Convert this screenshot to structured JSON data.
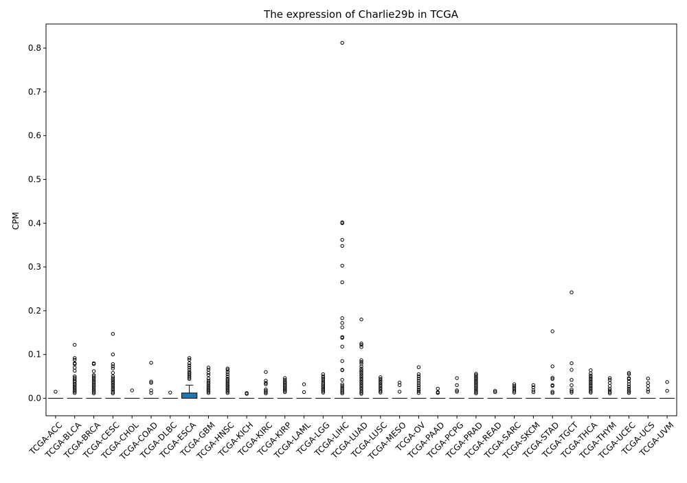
{
  "chart_data": {
    "type": "box",
    "title": "The expression of Charlie29b in TCGA",
    "xlabel": "",
    "ylabel": "CPM",
    "ylim": [
      -0.04,
      0.855
    ],
    "yticks": [
      0.0,
      0.1,
      0.2,
      0.3,
      0.4,
      0.5,
      0.6,
      0.7,
      0.8
    ],
    "ytick_labels": [
      "0.0",
      "0.1",
      "0.2",
      "0.3",
      "0.4",
      "0.5",
      "0.6",
      "0.7",
      "0.8"
    ],
    "grid": false,
    "box_color": "#1f77b4",
    "categories": [
      "TCGA-ACC",
      "TCGA-BLCA",
      "TCGA-BRCA",
      "TCGA-CESC",
      "TCGA-CHOL",
      "TCGA-COAD",
      "TCGA-DLBC",
      "TCGA-ESCA",
      "TCGA-GBM",
      "TCGA-HNSC",
      "TCGA-KICH",
      "TCGA-KIRC",
      "TCGA-KIRP",
      "TCGA-LAML",
      "TCGA-LGG",
      "TCGA-LIHC",
      "TCGA-LUAD",
      "TCGA-LUSC",
      "TCGA-MESO",
      "TCGA-OV",
      "TCGA-PAAD",
      "TCGA-PCPG",
      "TCGA-PRAD",
      "TCGA-READ",
      "TCGA-SARC",
      "TCGA-SKCM",
      "TCGA-STAD",
      "TCGA-TGCT",
      "TCGA-THCA",
      "TCGA-THYM",
      "TCGA-UCEC",
      "TCGA-UCS",
      "TCGA-UVM"
    ],
    "boxes": [
      {
        "q1": 0,
        "median": 0,
        "q3": 0,
        "whislo": 0,
        "whishi": 0,
        "fliers": [
          0.015
        ]
      },
      {
        "q1": 0,
        "median": 0,
        "q3": 0,
        "whislo": 0,
        "whishi": 0,
        "fliers": [
          0.122,
          0.092,
          0.088,
          0.08,
          0.078,
          0.07,
          0.063,
          0.05,
          0.047,
          0.044,
          0.04,
          0.037,
          0.033,
          0.03,
          0.027,
          0.024,
          0.021,
          0.018,
          0.015,
          0.012
        ]
      },
      {
        "q1": 0,
        "median": 0,
        "q3": 0,
        "whislo": 0,
        "whishi": 0,
        "fliers": [
          0.08,
          0.078,
          0.062,
          0.053,
          0.05,
          0.047,
          0.044,
          0.041,
          0.038,
          0.035,
          0.032,
          0.029,
          0.026,
          0.023,
          0.02,
          0.017,
          0.014,
          0.011
        ]
      },
      {
        "q1": 0,
        "median": 0,
        "q3": 0,
        "whislo": 0,
        "whishi": 0,
        "fliers": [
          0.147,
          0.1,
          0.078,
          0.073,
          0.068,
          0.058,
          0.05,
          0.046,
          0.042,
          0.038,
          0.034,
          0.03,
          0.026,
          0.022,
          0.018,
          0.014,
          0.011
        ]
      },
      {
        "q1": 0,
        "median": 0,
        "q3": 0,
        "whislo": 0,
        "whishi": 0,
        "fliers": [
          0.018
        ]
      },
      {
        "q1": 0,
        "median": 0,
        "q3": 0,
        "whislo": 0,
        "whishi": 0,
        "fliers": [
          0.081,
          0.038,
          0.035,
          0.018,
          0.012
        ]
      },
      {
        "q1": 0,
        "median": 0,
        "q3": 0,
        "whislo": 0,
        "whishi": 0,
        "fliers": [
          0.013
        ]
      },
      {
        "q1": 0,
        "median": 0,
        "q3": 0.012,
        "whislo": 0,
        "whishi": 0.03,
        "fliers": [
          0.092,
          0.088,
          0.08,
          0.075,
          0.07,
          0.065,
          0.06,
          0.057,
          0.054,
          0.05,
          0.047,
          0.044
        ]
      },
      {
        "q1": 0,
        "median": 0,
        "q3": 0,
        "whislo": 0,
        "whishi": 0,
        "fliers": [
          0.07,
          0.065,
          0.058,
          0.053,
          0.045,
          0.04,
          0.036,
          0.033,
          0.03,
          0.027,
          0.024,
          0.021,
          0.018,
          0.015,
          0.012
        ]
      },
      {
        "q1": 0,
        "median": 0,
        "q3": 0,
        "whislo": 0,
        "whishi": 0,
        "fliers": [
          0.068,
          0.065,
          0.06,
          0.055,
          0.05,
          0.045,
          0.042,
          0.039,
          0.036,
          0.033,
          0.03,
          0.027,
          0.024,
          0.021,
          0.018,
          0.015,
          0.012
        ]
      },
      {
        "q1": 0,
        "median": 0,
        "q3": 0,
        "whislo": 0,
        "whishi": 0,
        "fliers": [
          0.012,
          0.01
        ]
      },
      {
        "q1": 0,
        "median": 0,
        "q3": 0,
        "whislo": 0,
        "whishi": 0,
        "fliers": [
          0.06,
          0.04,
          0.035,
          0.032,
          0.02,
          0.017,
          0.014,
          0.011
        ]
      },
      {
        "q1": 0,
        "median": 0,
        "q3": 0,
        "whislo": 0,
        "whishi": 0,
        "fliers": [
          0.046,
          0.042,
          0.038,
          0.035,
          0.032,
          0.029,
          0.026,
          0.023,
          0.02,
          0.017,
          0.014
        ]
      },
      {
        "q1": 0,
        "median": 0,
        "q3": 0,
        "whislo": 0,
        "whishi": 0,
        "fliers": [
          0.032,
          0.014
        ]
      },
      {
        "q1": 0,
        "median": 0,
        "q3": 0,
        "whislo": 0,
        "whishi": 0,
        "fliers": [
          0.055,
          0.05,
          0.046,
          0.042,
          0.038,
          0.034,
          0.031,
          0.028,
          0.025,
          0.022,
          0.019,
          0.016,
          0.013
        ]
      },
      {
        "q1": 0,
        "median": 0,
        "q3": 0,
        "whislo": 0,
        "whishi": 0,
        "fliers": [
          0.812,
          0.402,
          0.4,
          0.362,
          0.348,
          0.303,
          0.265,
          0.183,
          0.172,
          0.162,
          0.14,
          0.138,
          0.118,
          0.085,
          0.065,
          0.064,
          0.042,
          0.032,
          0.028,
          0.024,
          0.02,
          0.017,
          0.014,
          0.011
        ]
      },
      {
        "q1": 0,
        "median": 0,
        "q3": 0,
        "whislo": 0,
        "whishi": 0,
        "fliers": [
          0.18,
          0.125,
          0.122,
          0.117,
          0.087,
          0.083,
          0.079,
          0.073,
          0.068,
          0.064,
          0.06,
          0.056,
          0.052,
          0.048,
          0.044,
          0.04,
          0.036,
          0.032,
          0.028,
          0.024,
          0.02,
          0.016,
          0.013,
          0.01
        ]
      },
      {
        "q1": 0,
        "median": 0,
        "q3": 0,
        "whislo": 0,
        "whishi": 0,
        "fliers": [
          0.048,
          0.044,
          0.04,
          0.036,
          0.032,
          0.028,
          0.024,
          0.02,
          0.016,
          0.013
        ]
      },
      {
        "q1": 0,
        "median": 0,
        "q3": 0,
        "whislo": 0,
        "whishi": 0,
        "fliers": [
          0.036,
          0.03,
          0.015
        ]
      },
      {
        "q1": 0,
        "median": 0,
        "q3": 0,
        "whislo": 0,
        "whishi": 0,
        "fliers": [
          0.071,
          0.055,
          0.05,
          0.045,
          0.04,
          0.035,
          0.03,
          0.025,
          0.02,
          0.016,
          0.012
        ]
      },
      {
        "q1": 0,
        "median": 0,
        "q3": 0,
        "whislo": 0,
        "whishi": 0,
        "fliers": [
          0.022,
          0.014,
          0.012
        ]
      },
      {
        "q1": 0,
        "median": 0,
        "q3": 0,
        "whislo": 0,
        "whishi": 0,
        "fliers": [
          0.046,
          0.03,
          0.018,
          0.015
        ]
      },
      {
        "q1": 0,
        "median": 0,
        "q3": 0,
        "whislo": 0,
        "whishi": 0,
        "fliers": [
          0.056,
          0.053,
          0.05,
          0.047,
          0.044,
          0.041,
          0.038,
          0.035,
          0.032,
          0.029,
          0.026,
          0.023,
          0.02,
          0.017,
          0.014,
          0.011
        ]
      },
      {
        "q1": 0,
        "median": 0,
        "q3": 0,
        "whislo": 0,
        "whishi": 0,
        "fliers": [
          0.017,
          0.014
        ]
      },
      {
        "q1": 0,
        "median": 0,
        "q3": 0,
        "whislo": 0,
        "whishi": 0,
        "fliers": [
          0.032,
          0.028,
          0.024,
          0.02,
          0.016,
          0.013
        ]
      },
      {
        "q1": 0,
        "median": 0,
        "q3": 0,
        "whislo": 0,
        "whishi": 0,
        "fliers": [
          0.03,
          0.025,
          0.018,
          0.014
        ]
      },
      {
        "q1": 0,
        "median": 0,
        "q3": 0,
        "whislo": 0,
        "whishi": 0,
        "fliers": [
          0.153,
          0.073,
          0.047,
          0.044,
          0.03,
          0.028,
          0.015,
          0.012
        ]
      },
      {
        "q1": 0,
        "median": 0,
        "q3": 0,
        "whislo": 0,
        "whishi": 0,
        "fliers": [
          0.242,
          0.08,
          0.065,
          0.042,
          0.03,
          0.02,
          0.016,
          0.013
        ]
      },
      {
        "q1": 0,
        "median": 0,
        "q3": 0,
        "whislo": 0,
        "whishi": 0,
        "fliers": [
          0.064,
          0.057,
          0.052,
          0.048,
          0.044,
          0.04,
          0.036,
          0.032,
          0.028,
          0.024,
          0.02,
          0.016,
          0.013
        ]
      },
      {
        "q1": 0,
        "median": 0,
        "q3": 0,
        "whislo": 0,
        "whishi": 0,
        "fliers": [
          0.046,
          0.042,
          0.035,
          0.028,
          0.022,
          0.018,
          0.014,
          0.011
        ]
      },
      {
        "q1": 0,
        "median": 0,
        "q3": 0,
        "whislo": 0,
        "whishi": 0,
        "fliers": [
          0.058,
          0.055,
          0.046,
          0.044,
          0.038,
          0.032,
          0.027,
          0.022,
          0.018,
          0.015,
          0.012
        ]
      },
      {
        "q1": 0,
        "median": 0,
        "q3": 0,
        "whislo": 0,
        "whishi": 0,
        "fliers": [
          0.045,
          0.035,
          0.028,
          0.02,
          0.015
        ]
      },
      {
        "q1": 0,
        "median": 0,
        "q3": 0,
        "whislo": 0,
        "whishi": 0,
        "fliers": [
          0.037,
          0.017
        ]
      }
    ]
  }
}
